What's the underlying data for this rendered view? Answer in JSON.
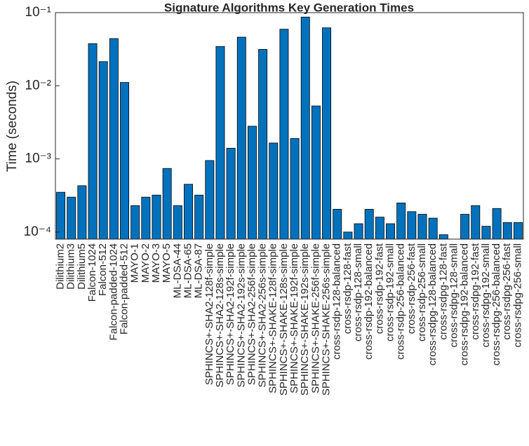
{
  "chart_data": {
    "type": "bar",
    "title": "Signature Algorithms Key Generation Times",
    "ylabel": "Time (seconds)",
    "categories": [
      "Dilithium2",
      "Dilithium3",
      "Dilithium5",
      "Falcon-1024",
      "Falcon-512",
      "Falcon-padded-1024",
      "Falcon-padded-512",
      "MAYO-1",
      "MAYO-2",
      "MAYO-3",
      "MAYO-5",
      "ML-DSA-44",
      "ML-DSA-65",
      "ML-DSA-87",
      "SPHINCS+-SHA2-128f-simple",
      "SPHINCS+-SHA2-128s-simple",
      "SPHINCS+-SHA2-192f-simple",
      "SPHINCS+-SHA2-192s-simple",
      "SPHINCS+-SHA2-256f-simple",
      "SPHINCS+-SHA2-256s-simple",
      "SPHINCS+-SHAKE-128f-simple",
      "SPHINCS+-SHAKE-128s-simple",
      "SPHINCS+-SHAKE-192f-simple",
      "SPHINCS+-SHAKE-192s-simple",
      "SPHINCS+-SHAKE-256f-simple",
      "SPHINCS+-SHAKE-256s-simple",
      "cross-rsdp-128-balanced",
      "cross-rsdp-128-fast",
      "cross-rsdp-128-small",
      "cross-rsdp-192-balanced",
      "cross-rsdp-192-fast",
      "cross-rsdp-192-small",
      "cross-rsdp-256-balanced",
      "cross-rsdp-256-fast",
      "cross-rsdp-256-small",
      "cross-rsdpg-128-balanced",
      "cross-rsdpg-128-fast",
      "cross-rsdpg-128-small",
      "cross-rsdpg-192-balanced",
      "cross-rsdpg-192-fast",
      "cross-rsdpg-192-small",
      "cross-rsdpg-256-balanced",
      "cross-rsdpg-256-fast",
      "cross-rsdpg-256-small"
    ],
    "values": [
      0.00035,
      0.0003,
      0.00043,
      0.0377,
      0.0214,
      0.0442,
      0.0111,
      0.00023,
      0.0003,
      0.00032,
      0.00074,
      0.00023,
      0.00045,
      0.00032,
      0.00095,
      0.0344,
      0.0014,
      0.0462,
      0.0028,
      0.0314,
      0.00165,
      0.0593,
      0.0019,
      0.087,
      0.0053,
      0.062,
      0.000205,
      0.0001,
      0.00013,
      0.000205,
      0.00016,
      0.00013,
      0.00025,
      0.00019,
      0.000175,
      0.000155,
      9.2e-05,
      null,
      0.000175,
      0.00023,
      0.00012,
      0.00021,
      0.000135,
      0.000135
    ],
    "color": "#0072bd",
    "log_y": true,
    "ylim": [
      8e-05,
      0.1
    ],
    "yticks": [
      {
        "value": 0.0001,
        "label": "10⁻⁴"
      },
      {
        "value": 0.001,
        "label": "10⁻³"
      },
      {
        "value": 0.01,
        "label": "10⁻²"
      },
      {
        "value": 0.1,
        "label": "10⁻¹"
      }
    ]
  }
}
